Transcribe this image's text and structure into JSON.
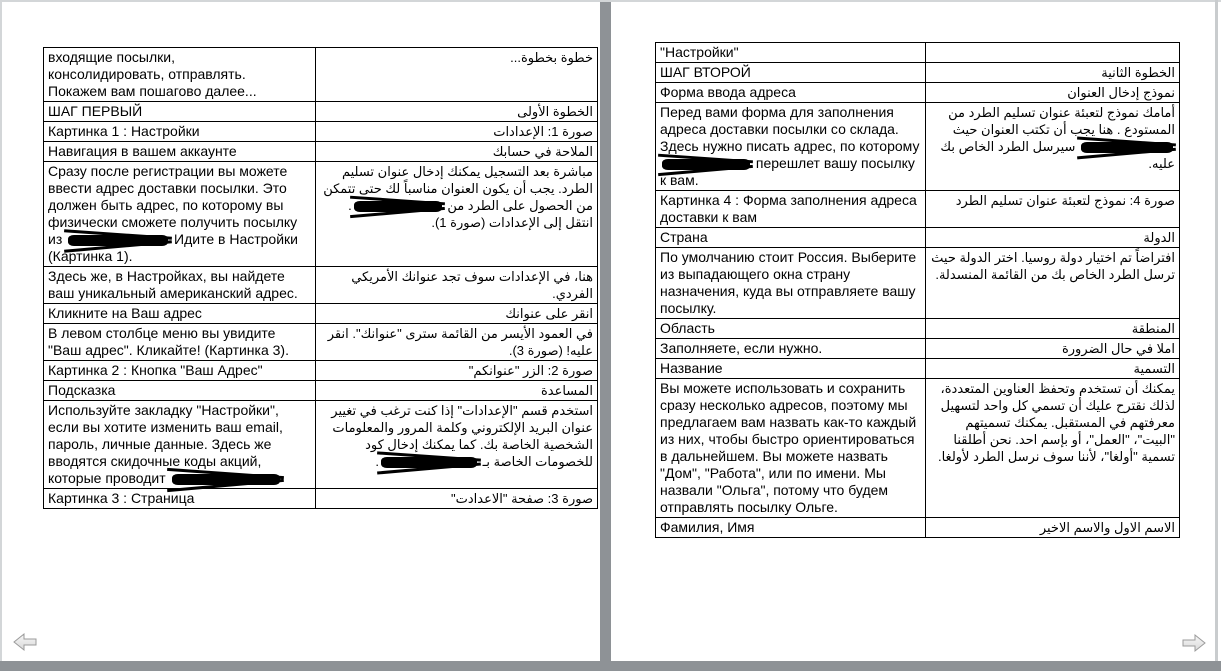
{
  "viewer": {
    "icons": {
      "prev": "previous-page-arrow",
      "next": "next-page-arrow"
    },
    "colors": {
      "page_background": "#ffffff",
      "gutter_gray": "#8e9296",
      "chrome_border": "#d3d6d8",
      "table_border": "#000000",
      "text": "#000000",
      "redaction": "#000000",
      "arrow_fill_light": "#f7f7f7",
      "arrow_fill_dark": "#d9d9d9",
      "arrow_stroke": "#9b9b9b"
    }
  },
  "pages": [
    {
      "name": "page-left",
      "rows": [
        {
          "ru": [
            {
              "t": "входящие посылки,\nконсолидировать, отправлять.\nПокажем вам пошагово далее..."
            }
          ],
          "ar": [
            {
              "t": "خطوة بخطوة..."
            }
          ]
        },
        {
          "ru": [
            {
              "t": "ШАГ ПЕРВЫЙ"
            }
          ],
          "ar": [
            {
              "t": "الخطوة الأولى"
            }
          ]
        },
        {
          "ru": [
            {
              "t": "Картинка 1 : Настройки"
            }
          ],
          "ar": [
            {
              "t": "صورة 1: الإعدادات"
            }
          ]
        },
        {
          "ru": [
            {
              "t": "Навигация в вашем аккаунте"
            }
          ],
          "ar": [
            {
              "t": "الملاحة في حسابك"
            }
          ]
        },
        {
          "ru": [
            {
              "t": "Сразу после регистрации вы можете ввести адрес доставки посылки. Это должен быть адрес, по которому вы физически сможете получить посылку из "
            },
            {
              "r": 100
            },
            {
              "t": " Идите в Настройки (Картинка 1)."
            }
          ],
          "ar": [
            {
              "t": "مباشرة بعد التسجيل يمكنك إدخال عنوان تسليم الطرد. يجب أن يكون العنوان مناسباً لك حتى تتمكن من الحصول على الطرد من "
            },
            {
              "r": 88
            },
            {
              "t": ". انتقل إلى الإعدادات (صورة 1)."
            }
          ]
        },
        {
          "ru": [
            {
              "t": "Здесь же, в Настройках, вы найдете ваш уникальный американский адрес."
            }
          ],
          "ar": [
            {
              "t": "هنا، في الإعدادات سوف تجد عنوانك الأمريكي الفردي."
            }
          ]
        },
        {
          "ru": [
            {
              "t": "Кликните на Ваш адрес"
            }
          ],
          "ar": [
            {
              "t": "انقر على عنوانك"
            }
          ]
        },
        {
          "ru": [
            {
              "t": "В левом столбце меню вы увидите \"Ваш адрес\". Кликайте! (Картинка 3)."
            }
          ],
          "ar": [
            {
              "t": "في العمود الأيسر من القائمة سترى \"عنوانك\". انقر عليه! (صورة 3)."
            }
          ]
        },
        {
          "ru": [
            {
              "t": "Картинка 2 : Кнопка \"Ваш Адрес\""
            }
          ],
          "ar": [
            {
              "t": "صورة 2: الزر \"عنوانكم\""
            }
          ]
        },
        {
          "ru": [
            {
              "t": "Подсказка"
            }
          ],
          "ar": [
            {
              "t": "المساعدة"
            }
          ]
        },
        {
          "ru": [
            {
              "t": "Используйте закладку \"Настройки\", если вы хотите изменить ваш email, пароль, личные данные. Здесь же вводятся скидочные коды акций, которые проводит "
            },
            {
              "r": 108
            }
          ],
          "ar": [
            {
              "t": "استخدم قسم \"الإعدادات\" إذا كنت ترغب في تغيير عنوان البريد الإلكتروني وكلمة المرور والمعلومات الشخصية الخاصة بك. كما يمكنك إدخال كود للخصومات الخاصة بـ "
            },
            {
              "r": 96
            },
            {
              "t": "."
            }
          ]
        },
        {
          "ru": [
            {
              "t": "Картинка 3 : Страница"
            }
          ],
          "ar": [
            {
              "t": "صورة 3: صفحة \"الاعدادت\""
            }
          ]
        }
      ]
    },
    {
      "name": "page-right",
      "rows": [
        {
          "ru": [
            {
              "t": "\"Настройки\""
            }
          ],
          "ar": [
            {
              "t": ""
            }
          ]
        },
        {
          "ru": [
            {
              "t": "ШАГ ВТОРОЙ"
            }
          ],
          "ar": [
            {
              "t": "الخطوة الثانية"
            }
          ]
        },
        {
          "ru": [
            {
              "t": "Форма ввода адреса"
            }
          ],
          "ar": [
            {
              "t": "نموذج إدخال العنوان"
            }
          ]
        },
        {
          "ru": [
            {
              "t": "Перед вами форма для заполнения адреса доставки посылки со склада. Здесь нужно писать адрес, по которому "
            },
            {
              "r": 88
            },
            {
              "t": " перешлет вашу посылку к вам."
            }
          ],
          "ar": [
            {
              "t": "أمامك نموذج لتعبئة عنوان تسليم الطرد من المستودع . هنا يجب أن تكتب العنوان حيث "
            },
            {
              "r": 92
            },
            {
              "t": " سيرسل الطرد الخاص بك عليه."
            }
          ]
        },
        {
          "ru": [
            {
              "t": "Картинка 4 : Форма заполнения адреса доставки к вам"
            }
          ],
          "ar": [
            {
              "t": "صورة 4: نموذج لتعبئة عنوان تسليم الطرد"
            }
          ]
        },
        {
          "ru": [
            {
              "t": "Страна"
            }
          ],
          "ar": [
            {
              "t": "الدولة"
            }
          ]
        },
        {
          "ru": [
            {
              "t": "По умолчанию стоит Россия. Выберите из выпадающего окна страну назначения, куда вы отправляете вашу посылку."
            }
          ],
          "ar": [
            {
              "t": "افتراضاً تم اختيار دولة روسيا. اختر الدولة حيث ترسل الطرد الخاص بك من القائمة المنسدلة."
            }
          ]
        },
        {
          "ru": [
            {
              "t": "Область"
            }
          ],
          "ar": [
            {
              "t": "المنطقة"
            }
          ]
        },
        {
          "ru": [
            {
              "t": "Заполняете, если нужно."
            }
          ],
          "ar": [
            {
              "t": "املا في حال الضرورة"
            }
          ]
        },
        {
          "ru": [
            {
              "t": "Название"
            }
          ],
          "ar": [
            {
              "t": "التسمية"
            }
          ]
        },
        {
          "ru": [
            {
              "t": "Вы можете использовать и сохранить сразу несколько адресов, поэтому мы предлагаем вам назвать как-то каждый из них, чтобы быстро ориентироваться в дальнейшем. Вы можете назвать \"Дом\", \"Работа\", или по имени. Мы назвали \"Ольга\", потому что будем отправлять посылку Ольге."
            }
          ],
          "ar": [
            {
              "t": "يمكنك أن تستخدم وتحفظ العناوين المتعددة، لذلك نقترح عليك أن تسمي كل واحد لتسهيل معرفتهم في المستقبل. يمكنك تسميتهم \"البيت\"، \"العمل\"، أو بإسم احد. نحن أطلقنا تسمية \"أولغا\"، لأننا سوف نرسل الطرد لأولغا."
            }
          ]
        },
        {
          "ru": [
            {
              "t": "Фамилия, Имя"
            }
          ],
          "ar": [
            {
              "t": "الاسم الاول والاسم الاخير"
            }
          ]
        }
      ]
    }
  ]
}
